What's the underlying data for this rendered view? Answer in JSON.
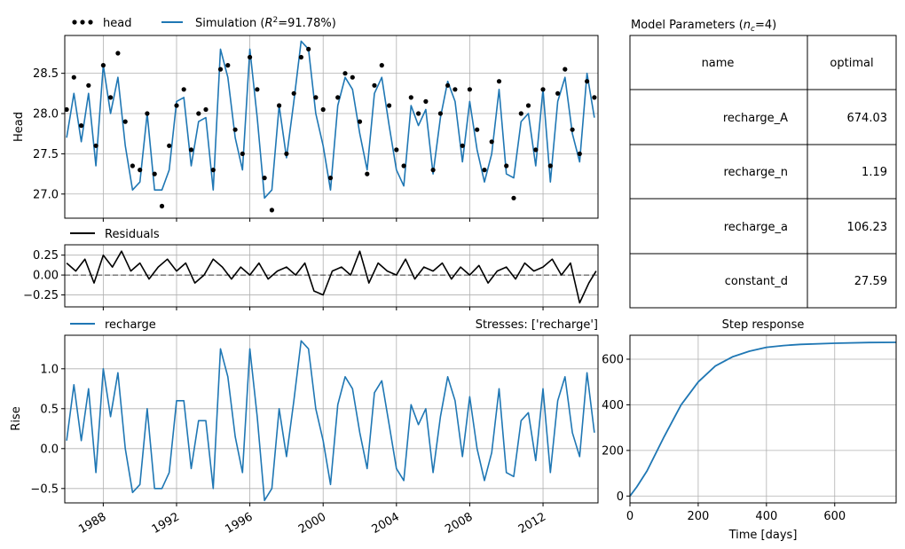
{
  "colors": {
    "simulation": "#1f77b4",
    "observed": "#000000",
    "residuals": "#000000",
    "grid": "#b0b0b0"
  },
  "head_panel": {
    "legend": {
      "observed_label": "head",
      "simulation_label_prefix": "Simulation (",
      "r2_symbol": "R",
      "r2_exp": "2",
      "simulation_label_suffix": "=91.78%)"
    },
    "ylabel": "Head",
    "ytick_labels": [
      "27.0",
      "27.5",
      "28.0",
      "28.5"
    ]
  },
  "residuals_panel": {
    "legend": "Residuals",
    "ytick_labels": [
      "0.25",
      "0.00",
      "−0.25"
    ]
  },
  "contribution_panel": {
    "legend": "recharge",
    "stresses_label": "Stresses: ['recharge']",
    "ylabel": "Rise",
    "ytick_labels": [
      "−0.5",
      "0.0",
      "0.5",
      "1.0"
    ],
    "xtick_labels": [
      "1988",
      "1992",
      "1996",
      "2000",
      "2004",
      "2008",
      "2012"
    ]
  },
  "parameters_table": {
    "title_prefix": "Model Parameters (",
    "title_n": "n",
    "title_sub": "c",
    "title_suffix": "=4)",
    "headers": [
      "name",
      "optimal"
    ],
    "rows": [
      {
        "name": "recharge_A",
        "optimal": "674.03"
      },
      {
        "name": "recharge_n",
        "optimal": "1.19"
      },
      {
        "name": "recharge_a",
        "optimal": "106.23"
      },
      {
        "name": "constant_d",
        "optimal": "27.59"
      }
    ]
  },
  "step_panel": {
    "title": "Step response",
    "xlabel": "Time [days]",
    "xtick_labels": [
      "0",
      "200",
      "400",
      "600"
    ],
    "ytick_labels": [
      "0",
      "200",
      "400",
      "600"
    ]
  },
  "chart_data": [
    {
      "type": "line",
      "panel": "head",
      "x_unit": "year",
      "xlim": [
        1985.9,
        2015.0
      ],
      "ylim": [
        26.7,
        28.97
      ],
      "grid": true,
      "legend_placement": "top-left, above axes",
      "series": [
        {
          "name": "head",
          "style": "points",
          "x": [
            1986.0,
            1986.4,
            1986.8,
            1987.2,
            1987.6,
            1988.0,
            1988.4,
            1988.8,
            1989.2,
            1989.6,
            1990.0,
            1990.4,
            1990.8,
            1991.2,
            1991.6,
            1992.0,
            1992.4,
            1992.8,
            1993.2,
            1993.6,
            1994.0,
            1994.4,
            1994.8,
            1995.2,
            1995.6,
            1996.0,
            1996.4,
            1996.8,
            1997.2,
            1997.6,
            1998.0,
            1998.4,
            1998.8,
            1999.2,
            1999.6,
            2000.0,
            2000.4,
            2000.8,
            2001.2,
            2001.6,
            2002.0,
            2002.4,
            2002.8,
            2003.2,
            2003.6,
            2004.0,
            2004.4,
            2004.8,
            2005.2,
            2005.6,
            2006.0,
            2006.4,
            2006.8,
            2007.2,
            2007.6,
            2008.0,
            2008.4,
            2008.8,
            2009.2,
            2009.6,
            2010.0,
            2010.4,
            2010.8,
            2011.2,
            2011.6,
            2012.0,
            2012.4,
            2012.8,
            2013.2,
            2013.6,
            2014.0,
            2014.4,
            2014.8
          ],
          "y": [
            28.05,
            28.45,
            27.85,
            28.35,
            27.6,
            28.6,
            28.2,
            28.75,
            27.9,
            27.35,
            27.3,
            28.0,
            27.25,
            26.85,
            27.6,
            28.1,
            28.3,
            27.55,
            28.0,
            28.05,
            27.3,
            28.55,
            28.6,
            27.8,
            27.5,
            28.7,
            28.3,
            27.2,
            26.8,
            28.1,
            27.5,
            28.25,
            28.7,
            28.8,
            28.2,
            28.05,
            27.2,
            28.2,
            28.5,
            28.45,
            27.9,
            27.25,
            28.35,
            28.6,
            28.1,
            27.55,
            27.35,
            28.2,
            28.0,
            28.15,
            27.3,
            28.0,
            28.35,
            28.3,
            27.6,
            28.3,
            27.8,
            27.3,
            27.65,
            28.4,
            27.35,
            26.95,
            28.0,
            28.1,
            27.55,
            28.3,
            27.35,
            28.25,
            28.55,
            27.8,
            27.5,
            28.4,
            28.2
          ]
        },
        {
          "name": "Simulation (R2=91.78%)",
          "style": "line",
          "x": [
            1986.0,
            1986.4,
            1986.8,
            1987.2,
            1987.6,
            1988.0,
            1988.4,
            1988.8,
            1989.2,
            1989.6,
            1990.0,
            1990.4,
            1990.8,
            1991.2,
            1991.6,
            1992.0,
            1992.4,
            1992.8,
            1993.2,
            1993.6,
            1994.0,
            1994.4,
            1994.8,
            1995.2,
            1995.6,
            1996.0,
            1996.4,
            1996.8,
            1997.2,
            1997.6,
            1998.0,
            1998.4,
            1998.8,
            1999.2,
            1999.6,
            2000.0,
            2000.4,
            2000.8,
            2001.2,
            2001.6,
            2002.0,
            2002.4,
            2002.8,
            2003.2,
            2003.6,
            2004.0,
            2004.4,
            2004.8,
            2005.2,
            2005.6,
            2006.0,
            2006.4,
            2006.8,
            2007.2,
            2007.6,
            2008.0,
            2008.4,
            2008.8,
            2009.2,
            2009.6,
            2010.0,
            2010.4,
            2010.8,
            2011.2,
            2011.6,
            2012.0,
            2012.4,
            2012.8,
            2013.2,
            2013.6,
            2014.0,
            2014.4,
            2014.8
          ],
          "y": [
            27.7,
            28.25,
            27.65,
            28.25,
            27.35,
            28.6,
            28.0,
            28.45,
            27.6,
            27.05,
            27.15,
            28.0,
            27.05,
            27.05,
            27.3,
            28.15,
            28.2,
            27.35,
            27.9,
            27.95,
            27.05,
            28.8,
            28.45,
            27.7,
            27.3,
            28.8,
            27.95,
            26.95,
            27.05,
            28.1,
            27.45,
            28.15,
            28.9,
            28.8,
            28.0,
            27.6,
            27.05,
            28.1,
            28.45,
            28.3,
            27.75,
            27.3,
            28.25,
            28.45,
            27.85,
            27.3,
            27.1,
            28.1,
            27.85,
            28.05,
            27.25,
            27.95,
            28.4,
            28.15,
            27.4,
            28.15,
            27.55,
            27.15,
            27.5,
            28.3,
            27.25,
            27.2,
            27.9,
            28.0,
            27.35,
            28.3,
            27.15,
            28.15,
            28.45,
            27.75,
            27.4,
            28.5,
            27.95
          ]
        }
      ]
    },
    {
      "type": "line",
      "panel": "residuals",
      "x_unit": "year",
      "xlim": [
        1985.9,
        2015.0
      ],
      "ylim": [
        -0.4,
        0.38
      ],
      "grid": true,
      "series": [
        {
          "name": "Residuals",
          "x": [
            1986.0,
            1986.5,
            1987.0,
            1987.5,
            1988.0,
            1988.5,
            1989.0,
            1989.5,
            1990.0,
            1990.5,
            1991.0,
            1991.5,
            1992.0,
            1992.5,
            1993.0,
            1993.5,
            1994.0,
            1994.5,
            1995.0,
            1995.5,
            1996.0,
            1996.5,
            1997.0,
            1997.5,
            1998.0,
            1998.5,
            1999.0,
            1999.5,
            2000.0,
            2000.5,
            2001.0,
            2001.5,
            2002.0,
            2002.5,
            2003.0,
            2003.5,
            2004.0,
            2004.5,
            2005.0,
            2005.5,
            2006.0,
            2006.5,
            2007.0,
            2007.5,
            2008.0,
            2008.5,
            2009.0,
            2009.5,
            2010.0,
            2010.5,
            2011.0,
            2011.5,
            2012.0,
            2012.5,
            2013.0,
            2013.5,
            2014.0,
            2014.5,
            2014.9
          ],
          "y": [
            0.15,
            0.05,
            0.2,
            -0.1,
            0.25,
            0.1,
            0.3,
            0.05,
            0.15,
            -0.05,
            0.1,
            0.2,
            0.05,
            0.15,
            -0.1,
            0.0,
            0.2,
            0.1,
            -0.05,
            0.1,
            0.0,
            0.15,
            -0.05,
            0.05,
            0.1,
            0.0,
            0.15,
            -0.2,
            -0.25,
            0.05,
            0.1,
            0.0,
            0.3,
            -0.1,
            0.15,
            0.05,
            0.0,
            0.2,
            -0.05,
            0.1,
            0.05,
            0.15,
            -0.05,
            0.1,
            0.0,
            0.12,
            -0.1,
            0.05,
            0.1,
            -0.05,
            0.15,
            0.05,
            0.1,
            0.2,
            0.0,
            0.15,
            -0.35,
            -0.1,
            0.05
          ]
        }
      ]
    },
    {
      "type": "line",
      "panel": "recharge contribution",
      "x_unit": "year",
      "xlim": [
        1985.9,
        2015.0
      ],
      "ylim": [
        -0.68,
        1.42
      ],
      "grid": true,
      "series": [
        {
          "name": "recharge",
          "x": [
            1986.0,
            1986.4,
            1986.8,
            1987.2,
            1987.6,
            1988.0,
            1988.4,
            1988.8,
            1989.2,
            1989.6,
            1990.0,
            1990.4,
            1990.8,
            1991.2,
            1991.6,
            1992.0,
            1992.4,
            1992.8,
            1993.2,
            1993.6,
            1994.0,
            1994.4,
            1994.8,
            1995.2,
            1995.6,
            1996.0,
            1996.4,
            1996.8,
            1997.2,
            1997.6,
            1998.0,
            1998.4,
            1998.8,
            1999.2,
            1999.6,
            2000.0,
            2000.4,
            2000.8,
            2001.2,
            2001.6,
            2002.0,
            2002.4,
            2002.8,
            2003.2,
            2003.6,
            2004.0,
            2004.4,
            2004.8,
            2005.2,
            2005.6,
            2006.0,
            2006.4,
            2006.8,
            2007.2,
            2007.6,
            2008.0,
            2008.4,
            2008.8,
            2009.2,
            2009.6,
            2010.0,
            2010.4,
            2010.8,
            2011.2,
            2011.6,
            2012.0,
            2012.4,
            2012.8,
            2013.2,
            2013.6,
            2014.0,
            2014.4,
            2014.8
          ],
          "y": [
            0.1,
            0.8,
            0.1,
            0.75,
            -0.3,
            1.0,
            0.4,
            0.95,
            0.0,
            -0.55,
            -0.45,
            0.5,
            -0.5,
            -0.5,
            -0.3,
            0.6,
            0.6,
            -0.25,
            0.35,
            0.35,
            -0.5,
            1.25,
            0.9,
            0.15,
            -0.3,
            1.25,
            0.4,
            -0.65,
            -0.5,
            0.5,
            -0.1,
            0.6,
            1.35,
            1.25,
            0.5,
            0.1,
            -0.45,
            0.55,
            0.9,
            0.75,
            0.2,
            -0.25,
            0.7,
            0.85,
            0.3,
            -0.25,
            -0.4,
            0.55,
            0.3,
            0.5,
            -0.3,
            0.4,
            0.9,
            0.6,
            -0.1,
            0.65,
            0.0,
            -0.4,
            -0.05,
            0.75,
            -0.3,
            -0.35,
            0.35,
            0.45,
            -0.15,
            0.75,
            -0.3,
            0.6,
            0.9,
            0.2,
            -0.1,
            0.95,
            0.2
          ]
        }
      ]
    },
    {
      "type": "line",
      "panel": "step response",
      "xlabel": "Time [days]",
      "xlim": [
        0,
        780
      ],
      "ylim": [
        -30,
        705
      ],
      "grid": true,
      "series": [
        {
          "name": "step",
          "x": [
            0,
            20,
            50,
            100,
            150,
            200,
            250,
            300,
            350,
            400,
            450,
            500,
            600,
            700,
            780
          ],
          "y": [
            0,
            40,
            110,
            260,
            400,
            500,
            570,
            610,
            635,
            652,
            660,
            665,
            670,
            673,
            674
          ]
        }
      ]
    }
  ]
}
